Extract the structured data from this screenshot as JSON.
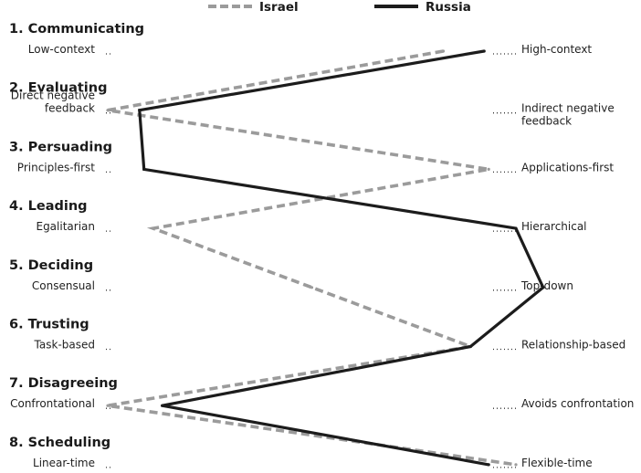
{
  "chart_data": {
    "type": "line",
    "scale": {
      "min": 1,
      "max": 10
    },
    "series": [
      {
        "name": "Israel",
        "color": "#9b9b9b",
        "style": "dashed",
        "values": [
          8.4,
          1.0,
          9.4,
          2.0,
          5.5,
          9.0,
          1.0,
          10.0
        ]
      },
      {
        "name": "Russia",
        "color": "#1c1c1c",
        "style": "solid",
        "values": [
          9.3,
          1.7,
          1.8,
          10.0,
          10.6,
          9.0,
          2.2,
          9.4
        ]
      }
    ],
    "dimensions": [
      {
        "title": "1. Communicating",
        "left": [
          "Low-context"
        ],
        "right": [
          "High-context"
        ]
      },
      {
        "title": "2. Evaluating",
        "left": [
          "Direct negative",
          "feedback"
        ],
        "right": [
          "Indirect negative",
          "feedback"
        ]
      },
      {
        "title": "3. Persuading",
        "left": [
          "Principles-first"
        ],
        "right": [
          "Applications-first"
        ]
      },
      {
        "title": "4. Leading",
        "left": [
          "Egalitarian"
        ],
        "right": [
          "Hierarchical"
        ]
      },
      {
        "title": "5. Deciding",
        "left": [
          "Consensual"
        ],
        "right": [
          "Top-down"
        ]
      },
      {
        "title": "6. Trusting",
        "left": [
          "Task-based"
        ],
        "right": [
          "Relationship-based"
        ]
      },
      {
        "title": "7. Disagreeing",
        "left": [
          "Confrontational"
        ],
        "right": [
          "Avoids confrontation"
        ]
      },
      {
        "title": "8. Scheduling",
        "left": [
          "Linear-time"
        ],
        "right": [
          "Flexible-time"
        ]
      }
    ]
  }
}
